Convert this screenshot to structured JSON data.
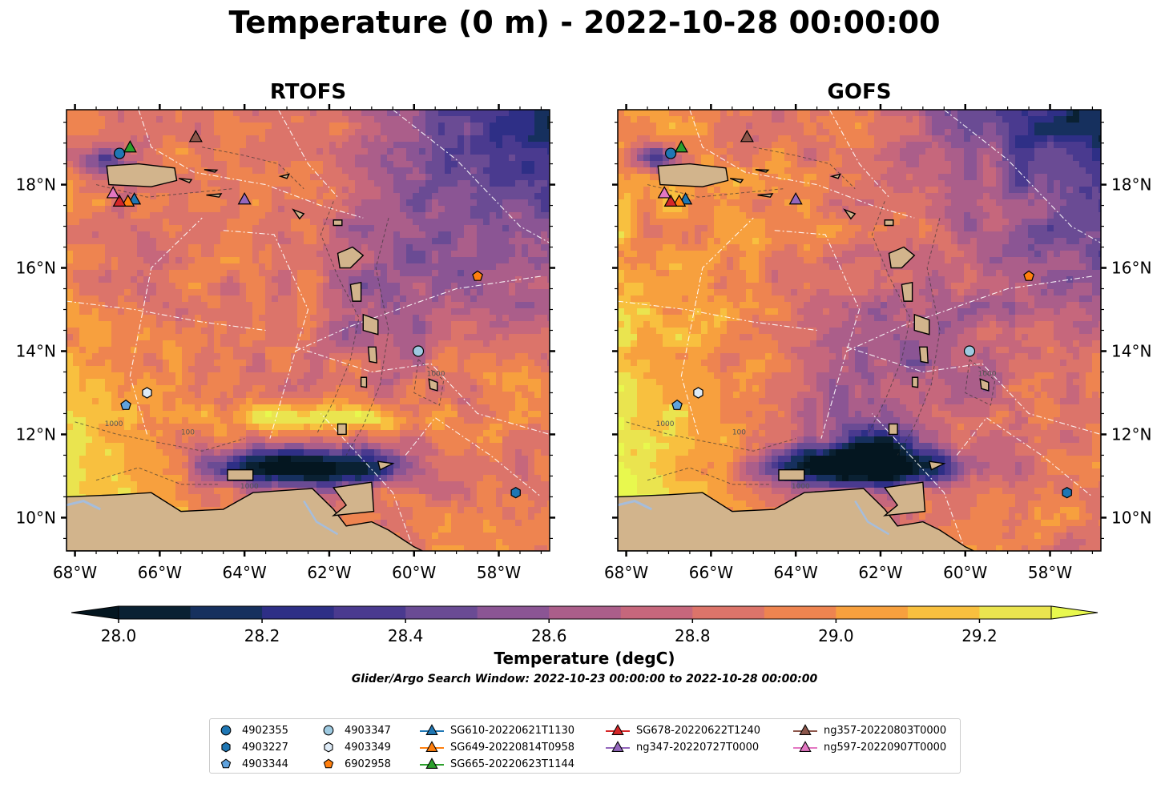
{
  "title": "Temperature (0 m) - 2022-10-28 00:00:00",
  "panels": [
    {
      "title": "RTOFS"
    },
    {
      "title": "GOFS"
    }
  ],
  "chart_data": {
    "type": "heatmap",
    "variable": "Temperature (0 m)",
    "colorbar": {
      "label": "Temperature (degC)",
      "vmin": 28.0,
      "vmax": 29.3,
      "step": 0.1,
      "extend": "both",
      "ticks": [
        28.0,
        28.2,
        28.4,
        28.6,
        28.8,
        29.0,
        29.2
      ],
      "tick_labels": [
        "28.0",
        "28.2",
        "28.4",
        "28.6",
        "28.8",
        "29.0",
        "29.2"
      ],
      "colors": [
        "#0a2133",
        "#16305e",
        "#2e2f86",
        "#4a3a8f",
        "#6a4b94",
        "#8b5594",
        "#ab5e8a",
        "#c6677c",
        "#dc746a",
        "#ee8450",
        "#f7a03e",
        "#f8c03f",
        "#eae44f"
      ],
      "under_color": "#041620",
      "over_color": "#e8f84e"
    },
    "lon_ticks": [
      "68°W",
      "66°W",
      "64°W",
      "62°W",
      "60°W",
      "58°W"
    ],
    "lat_ticks": [
      "18°N",
      "16°N",
      "14°N",
      "12°N",
      "10°N"
    ],
    "lon_values": [
      -68,
      -66,
      -64,
      -62,
      -60,
      -58
    ],
    "lat_values": [
      18,
      16,
      14,
      12,
      10
    ],
    "extent": {
      "lon": [
        -68.2,
        -56.8
      ],
      "lat": [
        9.2,
        19.8
      ]
    },
    "contour_labels": [
      "1000",
      "1000",
      "100",
      "1000"
    ],
    "markers": [
      {
        "name": "4902355",
        "shape": "circle",
        "color": "#1f77b4",
        "lon": -66.95,
        "lat": 18.75
      },
      {
        "name": "4903227",
        "shape": "hexagon",
        "color": "#1f77b4",
        "lon": -57.6,
        "lat": 10.6
      },
      {
        "name": "4903344",
        "shape": "pentagon",
        "color": "#5fa2dd",
        "lon": -66.8,
        "lat": 12.7
      },
      {
        "name": "4903347",
        "shape": "circle",
        "color": "#9ecae1",
        "lon": -59.9,
        "lat": 14.0
      },
      {
        "name": "4903349",
        "shape": "hexagon",
        "color": "#deebf7",
        "lon": -66.3,
        "lat": 13.0
      },
      {
        "name": "6902958",
        "shape": "pentagon",
        "color": "#ff7f0e",
        "lon": -58.5,
        "lat": 15.8
      },
      {
        "name": "SG610-20220621T1130",
        "shape": "triangle",
        "color": "#1f77b4",
        "lon": -66.6,
        "lat": 17.65
      },
      {
        "name": "SG649-20220814T0958",
        "shape": "triangle",
        "color": "#ff7f0e",
        "lon": -66.75,
        "lat": 17.6
      },
      {
        "name": "SG665-20220623T1144",
        "shape": "triangle",
        "color": "#2ca02c",
        "lon": -66.7,
        "lat": 18.9
      },
      {
        "name": "SG678-20220622T1240",
        "shape": "triangle",
        "color": "#d62728",
        "lon": -66.95,
        "lat": 17.6
      },
      {
        "name": "ng347-20220727T0000",
        "shape": "triangle",
        "color": "#9467bd",
        "lon": -64.0,
        "lat": 17.65
      },
      {
        "name": "ng357-20220803T0000",
        "shape": "triangle",
        "color": "#8c564b",
        "lon": -65.15,
        "lat": 19.15
      },
      {
        "name": "ng597-20220907T0000",
        "shape": "triangle",
        "color": "#e377c2",
        "lon": -67.1,
        "lat": 17.8
      }
    ],
    "land_color": "#d2b48c",
    "lake_color": "#a6bddb",
    "eez_line_color": "#ffffff"
  },
  "search_window": "Glider/Argo Search Window: 2022-10-23 00:00:00 to 2022-10-28 00:00:00"
}
